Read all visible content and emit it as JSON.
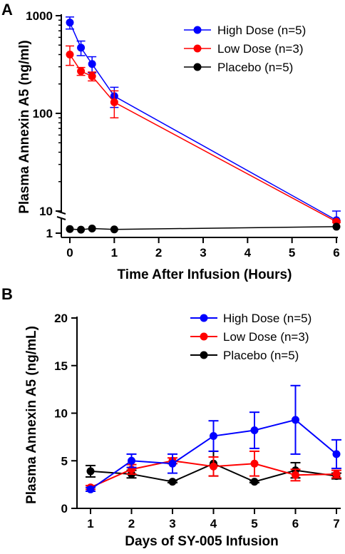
{
  "chart_data": [
    {
      "panel": "A",
      "type": "line",
      "xlabel": "Time After Infusion (Hours)",
      "ylabel": "Plasma Annexin A5 (ng/ml)",
      "x_scale": "linear",
      "y_scale": "log (segmented axis with break)",
      "xlim": [
        0,
        6
      ],
      "x_ticks": [
        "0",
        "1",
        "2",
        "3",
        "4",
        "5",
        "6"
      ],
      "y_ticks": [
        "1",
        "10",
        "100",
        "1000"
      ],
      "legend_position": "top-right",
      "series": [
        {
          "name": "High Dose (n=5)",
          "color": "#0000ff",
          "x": [
            0,
            0.25,
            0.5,
            1,
            6
          ],
          "y": [
            850,
            470,
            320,
            150,
            9
          ],
          "err": [
            120,
            80,
            60,
            35,
            1
          ]
        },
        {
          "name": "Low Dose (n=3)",
          "color": "#ff0000",
          "x": [
            0,
            0.25,
            0.5,
            1,
            6
          ],
          "y": [
            400,
            270,
            240,
            130,
            7
          ],
          "err": [
            90,
            25,
            25,
            40,
            1
          ]
        },
        {
          "name": "Placebo (n=5)",
          "color": "#000000",
          "x": [
            0,
            0.25,
            0.5,
            1,
            6
          ],
          "y": [
            2,
            1.8,
            2.2,
            1.9,
            3
          ],
          "err": [
            0,
            0,
            0,
            0,
            0
          ]
        }
      ]
    },
    {
      "panel": "B",
      "type": "line",
      "xlabel": "Days of SY-005 Infusion",
      "ylabel": "Plasma Annexin A5 (ng/mL)",
      "categories": [
        "1",
        "2",
        "3",
        "4",
        "5",
        "6",
        "7"
      ],
      "ylim": [
        0,
        20
      ],
      "y_ticks": [
        "0",
        "5",
        "10",
        "15",
        "20"
      ],
      "legend_position": "top-right",
      "series": [
        {
          "name": "High Dose (n=5)",
          "color": "#0000ff",
          "values": [
            2.0,
            5.0,
            4.7,
            7.6,
            8.2,
            9.3,
            5.7
          ],
          "err": [
            0.2,
            0.7,
            1.0,
            1.6,
            1.9,
            3.6,
            1.5
          ]
        },
        {
          "name": "Low Dose (n=3)",
          "color": "#ff0000",
          "values": [
            2.2,
            4.1,
            5.0,
            4.4,
            4.7,
            3.5,
            3.6
          ],
          "err": [
            0.2,
            0.5,
            0.3,
            1.0,
            1.3,
            0.6,
            0.4
          ]
        },
        {
          "name": "Placebo (n=5)",
          "color": "#000000",
          "values": [
            3.9,
            3.6,
            2.8,
            4.7,
            2.8,
            4.0,
            3.4
          ],
          "err": [
            0.6,
            0.4,
            0.1,
            1.3,
            0.1,
            0.8,
            0.3
          ]
        }
      ]
    }
  ],
  "panels": {
    "A": {
      "letter": "A"
    },
    "B": {
      "letter": "B"
    }
  }
}
